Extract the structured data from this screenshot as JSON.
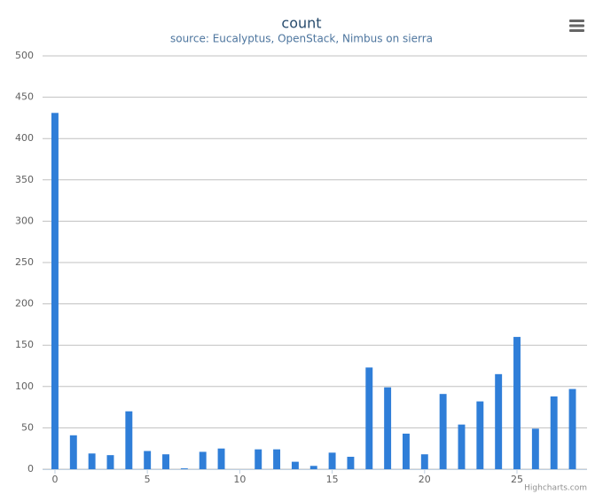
{
  "chart_data": {
    "type": "bar",
    "title": "count",
    "subtitle": "source: Eucalyptus, OpenStack, Nimbus on sierra",
    "x": [
      0,
      1,
      2,
      3,
      4,
      5,
      6,
      7,
      8,
      9,
      10,
      11,
      12,
      13,
      14,
      15,
      16,
      17,
      18,
      19,
      20,
      21,
      22,
      23,
      24,
      25,
      26,
      27,
      28
    ],
    "values": [
      431,
      41,
      19,
      17,
      70,
      22,
      18,
      1,
      21,
      25,
      0,
      24,
      24,
      9,
      4,
      20,
      15,
      123,
      99,
      43,
      18,
      91,
      54,
      82,
      115,
      160,
      49,
      88,
      97
    ],
    "color": "#2f7ed8",
    "xlim": [
      -0.67,
      28.79
    ],
    "xticks": [
      0,
      5,
      10,
      15,
      20,
      25
    ],
    "ylim": [
      0,
      500
    ],
    "yticks": [
      0,
      50,
      100,
      150,
      200,
      250,
      300,
      350,
      400,
      450,
      500
    ],
    "grid": true,
    "credits": "Highcharts.com"
  }
}
